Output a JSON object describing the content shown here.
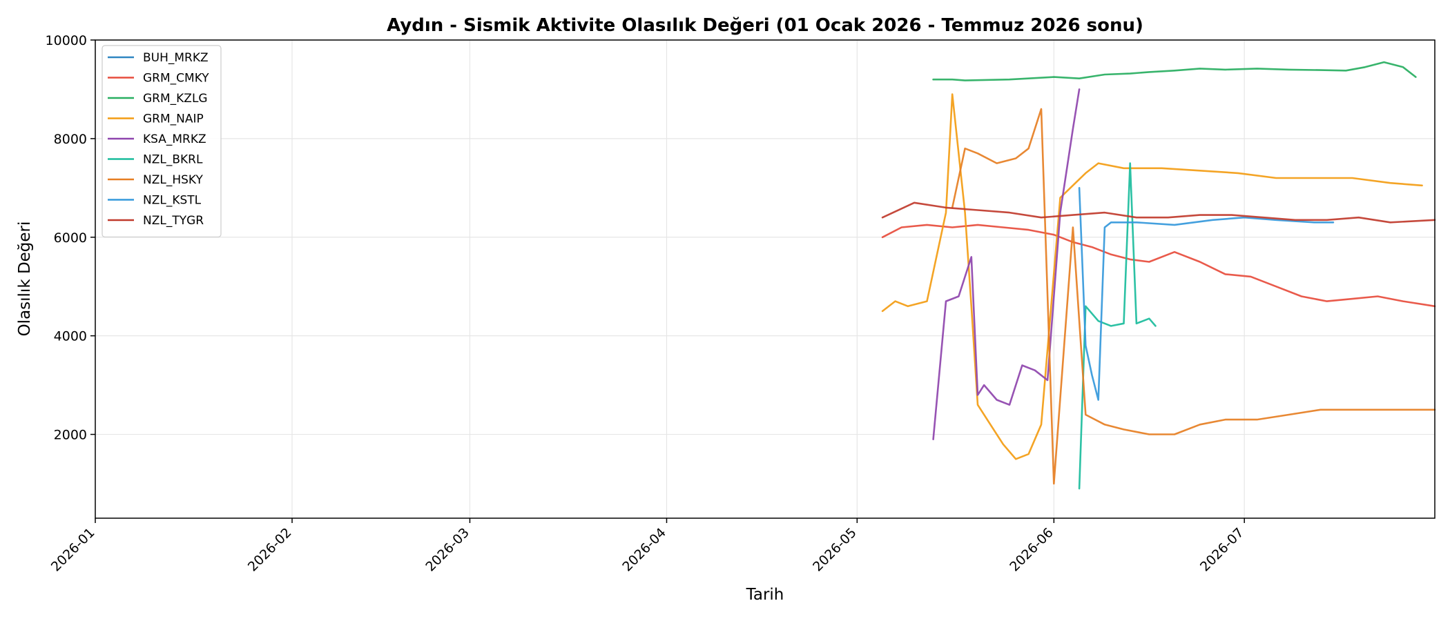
{
  "chart_data": {
    "type": "line",
    "title": "Aydın - Sismik Aktivite Olasılık Değeri (01 Ocak 2026 - Temmuz 2026 sonu)",
    "xlabel": "Tarih",
    "ylabel": "Olasılık Değeri",
    "xlim": [
      "2026-01-01",
      "2026-07-31"
    ],
    "ylim": [
      300,
      10000
    ],
    "x_ticks": [
      "2026-01",
      "2026-02",
      "2026-03",
      "2026-04",
      "2026-05",
      "2026-06",
      "2026-07"
    ],
    "y_ticks": [
      2000,
      4000,
      6000,
      8000,
      10000
    ],
    "grid": true,
    "legend_position": "upper-left",
    "series": [
      {
        "name": "BUH_MRKZ",
        "color": "#2e86c1",
        "x": [],
        "y": []
      },
      {
        "name": "GRM_CMKY",
        "color": "#e74c3c",
        "x": [
          "2026-05-05",
          "2026-05-08",
          "2026-05-12",
          "2026-05-16",
          "2026-05-20",
          "2026-05-24",
          "2026-05-28",
          "2026-06-01",
          "2026-06-04",
          "2026-06-07",
          "2026-06-10",
          "2026-06-13",
          "2026-06-16",
          "2026-06-20",
          "2026-06-24",
          "2026-06-28",
          "2026-07-02",
          "2026-07-06",
          "2026-07-10",
          "2026-07-14",
          "2026-07-18",
          "2026-07-22",
          "2026-07-26",
          "2026-07-31"
        ],
        "y": [
          6000,
          6200,
          6250,
          6200,
          6250,
          6200,
          6150,
          6050,
          5900,
          5800,
          5650,
          5550,
          5500,
          5700,
          5500,
          5250,
          5200,
          5000,
          4800,
          4700,
          4750,
          4800,
          4700,
          4600
        ]
      },
      {
        "name": "GRM_KZLG",
        "color": "#27ae60",
        "x": [
          "2026-05-13",
          "2026-05-16",
          "2026-05-18",
          "2026-05-25",
          "2026-06-01",
          "2026-06-05",
          "2026-06-09",
          "2026-06-13",
          "2026-06-16",
          "2026-06-20",
          "2026-06-24",
          "2026-06-28",
          "2026-07-03",
          "2026-07-08",
          "2026-07-13",
          "2026-07-17",
          "2026-07-20",
          "2026-07-23",
          "2026-07-26",
          "2026-07-28"
        ],
        "y": [
          9200,
          9200,
          9180,
          9200,
          9250,
          9220,
          9300,
          9320,
          9350,
          9380,
          9420,
          9400,
          9420,
          9400,
          9390,
          9380,
          9450,
          9550,
          9450,
          9250
        ]
      },
      {
        "name": "GRM_NAIP",
        "color": "#f39c12",
        "x": [
          "2026-05-05",
          "2026-05-07",
          "2026-05-09",
          "2026-05-12",
          "2026-05-15",
          "2026-05-16",
          "2026-05-18",
          "2026-05-19",
          "2026-05-20",
          "2026-05-22",
          "2026-05-24",
          "2026-05-26",
          "2026-05-28",
          "2026-05-30",
          "2026-06-02",
          "2026-06-06",
          "2026-06-08",
          "2026-06-12",
          "2026-06-18",
          "2026-06-24",
          "2026-06-30",
          "2026-07-06",
          "2026-07-12",
          "2026-07-18",
          "2026-07-24",
          "2026-07-29"
        ],
        "y": [
          4500,
          4700,
          4600,
          4700,
          6500,
          8900,
          6500,
          4600,
          2600,
          2200,
          1800,
          1500,
          1600,
          2200,
          6800,
          7300,
          7500,
          7400,
          7400,
          7350,
          7300,
          7200,
          7200,
          7200,
          7100,
          7050
        ]
      },
      {
        "name": "KSA_MRKZ",
        "color": "#8e44ad",
        "x": [
          "2026-05-13",
          "2026-05-15",
          "2026-05-17",
          "2026-05-19",
          "2026-05-20",
          "2026-05-21",
          "2026-05-23",
          "2026-05-25",
          "2026-05-27",
          "2026-05-29",
          "2026-05-31",
          "2026-06-02",
          "2026-06-04",
          "2026-06-05"
        ],
        "y": [
          1900,
          4700,
          4800,
          5600,
          2800,
          3000,
          2700,
          2600,
          3400,
          3300,
          3100,
          6500,
          8200,
          9000
        ]
      },
      {
        "name": "NZL_BKRL",
        "color": "#1abc9c",
        "x": [
          "2026-06-05",
          "2026-06-06",
          "2026-06-08",
          "2026-06-10",
          "2026-06-12",
          "2026-06-13",
          "2026-06-14",
          "2026-06-16",
          "2026-06-17"
        ],
        "y": [
          900,
          4600,
          4300,
          4200,
          4250,
          7500,
          4250,
          4350,
          4200
        ]
      },
      {
        "name": "NZL_HSKY",
        "color": "#e67e22",
        "x": [
          "2026-05-16",
          "2026-05-18",
          "2026-05-20",
          "2026-05-23",
          "2026-05-26",
          "2026-05-28",
          "2026-05-30",
          "2026-06-01",
          "2026-06-04",
          "2026-06-06",
          "2026-06-09",
          "2026-06-12",
          "2026-06-16",
          "2026-06-20",
          "2026-06-24",
          "2026-06-28",
          "2026-07-03",
          "2026-07-08",
          "2026-07-13",
          "2026-07-18",
          "2026-07-23",
          "2026-07-31"
        ],
        "y": [
          6600,
          7800,
          7700,
          7500,
          7600,
          7800,
          8600,
          1000,
          6200,
          2400,
          2200,
          2100,
          2000,
          2000,
          2200,
          2300,
          2300,
          2400,
          2500,
          2500,
          2500,
          2500
        ]
      },
      {
        "name": "NZL_KSTL",
        "color": "#3498db",
        "x": [
          "2026-06-05",
          "2026-06-06",
          "2026-06-07",
          "2026-06-08",
          "2026-06-09",
          "2026-06-10",
          "2026-06-14",
          "2026-06-20",
          "2026-06-26",
          "2026-07-01",
          "2026-07-06",
          "2026-07-12",
          "2026-07-15"
        ],
        "y": [
          7000,
          3800,
          3200,
          2700,
          6200,
          6300,
          6300,
          6250,
          6350,
          6400,
          6350,
          6300,
          6300
        ]
      },
      {
        "name": "NZL_TYGR",
        "color": "#c0392b",
        "x": [
          "2026-05-05",
          "2026-05-10",
          "2026-05-15",
          "2026-05-20",
          "2026-05-25",
          "2026-05-30",
          "2026-06-04",
          "2026-06-09",
          "2026-06-14",
          "2026-06-19",
          "2026-06-24",
          "2026-06-29",
          "2026-07-04",
          "2026-07-09",
          "2026-07-14",
          "2026-07-19",
          "2026-07-24",
          "2026-07-31"
        ],
        "y": [
          6400,
          6700,
          6600,
          6550,
          6500,
          6400,
          6450,
          6500,
          6400,
          6400,
          6450,
          6450,
          6400,
          6350,
          6350,
          6400,
          6300,
          6350
        ]
      }
    ]
  }
}
